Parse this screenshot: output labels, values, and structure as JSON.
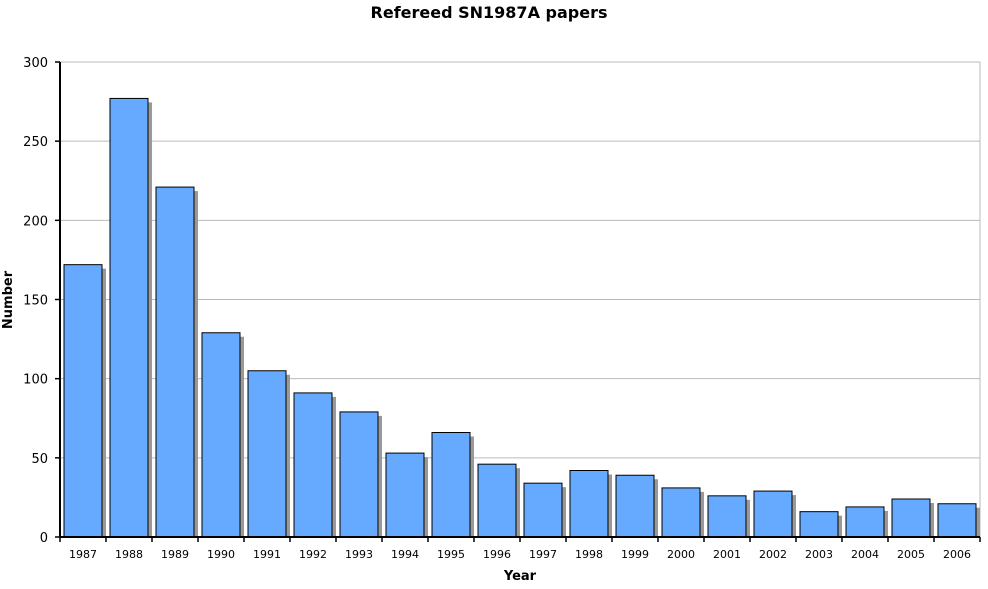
{
  "chart_data": {
    "type": "bar",
    "title": "Refereed SN1987A papers",
    "xlabel": "Year",
    "ylabel": "Number",
    "categories": [
      "1987",
      "1988",
      "1989",
      "1990",
      "1991",
      "1992",
      "1993",
      "1994",
      "1995",
      "1996",
      "1997",
      "1998",
      "1999",
      "2000",
      "2001",
      "2002",
      "2003",
      "2004",
      "2005",
      "2006"
    ],
    "values": [
      172,
      277,
      221,
      129,
      105,
      91,
      79,
      53,
      66,
      46,
      34,
      42,
      39,
      31,
      26,
      29,
      16,
      19,
      24,
      21
    ],
    "ylim": [
      0,
      300
    ],
    "yticks": [
      0,
      50,
      100,
      150,
      200,
      250,
      300
    ],
    "grid": true,
    "legend": "none",
    "colors": {
      "bar_fill": "#66aaff",
      "bar_stroke": "#000000",
      "bar_shadow": "#999999",
      "grid": "#bbbbbb",
      "axis": "#000000"
    }
  }
}
